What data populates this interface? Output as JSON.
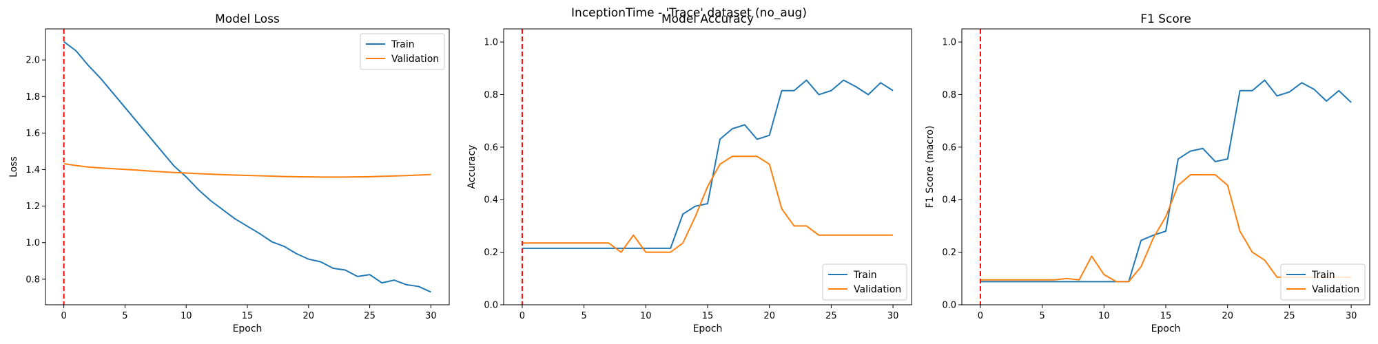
{
  "figure": {
    "suptitle": "InceptionTime - 'Trace' dataset (no_aug)"
  },
  "colors": {
    "train": "#1f77b4",
    "validation": "#ff7f0e",
    "marker": "#ff0000"
  },
  "chart_data": [
    {
      "type": "line",
      "title": "Model Loss",
      "xlabel": "Epoch",
      "ylabel": "Loss",
      "xlim": [
        -1.5,
        31.5
      ],
      "ylim": [
        0.66,
        2.17
      ],
      "xticks": [
        0,
        5,
        10,
        15,
        20,
        25,
        30
      ],
      "yticks": [
        0.8,
        1.0,
        1.2,
        1.4,
        1.6,
        1.8,
        2.0
      ],
      "ytick_labels": [
        "0.8",
        "1.0",
        "1.2",
        "1.4",
        "1.6",
        "1.8",
        "2.0"
      ],
      "vline_x": 0,
      "legend_loc": "upper right",
      "x": [
        0,
        1,
        2,
        3,
        4,
        5,
        6,
        7,
        8,
        9,
        10,
        11,
        12,
        13,
        14,
        15,
        16,
        17,
        18,
        19,
        20,
        21,
        22,
        23,
        24,
        25,
        26,
        27,
        28,
        29,
        30
      ],
      "series": [
        {
          "name": "Train",
          "values": [
            2.1,
            2.05,
            1.97,
            1.9,
            1.82,
            1.74,
            1.66,
            1.58,
            1.5,
            1.42,
            1.36,
            1.29,
            1.23,
            1.18,
            1.13,
            1.09,
            1.05,
            1.005,
            0.98,
            0.94,
            0.91,
            0.895,
            0.86,
            0.85,
            0.815,
            0.825,
            0.78,
            0.795,
            0.77,
            0.76,
            0.73
          ]
        },
        {
          "name": "Validation",
          "values": [
            1.432,
            1.422,
            1.414,
            1.409,
            1.405,
            1.401,
            1.397,
            1.392,
            1.388,
            1.384,
            1.381,
            1.378,
            1.375,
            1.372,
            1.37,
            1.368,
            1.366,
            1.364,
            1.362,
            1.361,
            1.36,
            1.359,
            1.359,
            1.359,
            1.36,
            1.361,
            1.363,
            1.365,
            1.367,
            1.37,
            1.373
          ]
        }
      ]
    },
    {
      "type": "line",
      "title": "Model Accuracy",
      "xlabel": "Epoch",
      "ylabel": "Accuracy",
      "xlim": [
        -1.5,
        31.5
      ],
      "ylim": [
        0.0,
        1.05
      ],
      "xticks": [
        0,
        5,
        10,
        15,
        20,
        25,
        30
      ],
      "yticks": [
        0.0,
        0.2,
        0.4,
        0.6,
        0.8,
        1.0
      ],
      "ytick_labels": [
        "0.0",
        "0.2",
        "0.4",
        "0.6",
        "0.8",
        "1.0"
      ],
      "vline_x": 0,
      "legend_loc": "lower right",
      "x": [
        0,
        1,
        2,
        3,
        4,
        5,
        6,
        7,
        8,
        9,
        10,
        11,
        12,
        13,
        14,
        15,
        16,
        17,
        18,
        19,
        20,
        21,
        22,
        23,
        24,
        25,
        26,
        27,
        28,
        29,
        30
      ],
      "series": [
        {
          "name": "Train",
          "values": [
            0.215,
            0.215,
            0.215,
            0.215,
            0.215,
            0.215,
            0.215,
            0.215,
            0.215,
            0.215,
            0.215,
            0.215,
            0.215,
            0.345,
            0.375,
            0.385,
            0.63,
            0.67,
            0.685,
            0.63,
            0.645,
            0.815,
            0.815,
            0.855,
            0.8,
            0.815,
            0.855,
            0.83,
            0.8,
            0.845,
            0.815
          ]
        },
        {
          "name": "Validation",
          "values": [
            0.235,
            0.235,
            0.235,
            0.235,
            0.235,
            0.235,
            0.235,
            0.235,
            0.2,
            0.265,
            0.2,
            0.2,
            0.2,
            0.235,
            0.335,
            0.45,
            0.535,
            0.565,
            0.565,
            0.565,
            0.535,
            0.365,
            0.3,
            0.3,
            0.265,
            0.265,
            0.265,
            0.265,
            0.265,
            0.265,
            0.265
          ]
        }
      ]
    },
    {
      "type": "line",
      "title": "F1 Score",
      "xlabel": "Epoch",
      "ylabel": "F1 Score (macro)",
      "xlim": [
        -1.5,
        31.5
      ],
      "ylim": [
        0.0,
        1.05
      ],
      "xticks": [
        0,
        5,
        10,
        15,
        20,
        25,
        30
      ],
      "yticks": [
        0.0,
        0.2,
        0.4,
        0.6,
        0.8,
        1.0
      ],
      "ytick_labels": [
        "0.0",
        "0.2",
        "0.4",
        "0.6",
        "0.8",
        "1.0"
      ],
      "vline_x": 0,
      "legend_loc": "lower right",
      "x": [
        0,
        1,
        2,
        3,
        4,
        5,
        6,
        7,
        8,
        9,
        10,
        11,
        12,
        13,
        14,
        15,
        16,
        17,
        18,
        19,
        20,
        21,
        22,
        23,
        24,
        25,
        26,
        27,
        28,
        29,
        30
      ],
      "series": [
        {
          "name": "Train",
          "values": [
            0.088,
            0.088,
            0.088,
            0.088,
            0.088,
            0.088,
            0.088,
            0.088,
            0.088,
            0.088,
            0.088,
            0.088,
            0.088,
            0.245,
            0.265,
            0.28,
            0.555,
            0.585,
            0.595,
            0.545,
            0.555,
            0.815,
            0.815,
            0.855,
            0.795,
            0.81,
            0.845,
            0.82,
            0.775,
            0.815,
            0.77
          ]
        },
        {
          "name": "Validation",
          "values": [
            0.095,
            0.095,
            0.095,
            0.095,
            0.095,
            0.095,
            0.095,
            0.1,
            0.095,
            0.185,
            0.115,
            0.088,
            0.088,
            0.145,
            0.255,
            0.335,
            0.455,
            0.495,
            0.495,
            0.495,
            0.455,
            0.28,
            0.2,
            0.17,
            0.105,
            0.105,
            0.105,
            0.105,
            0.105,
            0.105,
            0.105
          ]
        }
      ]
    }
  ]
}
